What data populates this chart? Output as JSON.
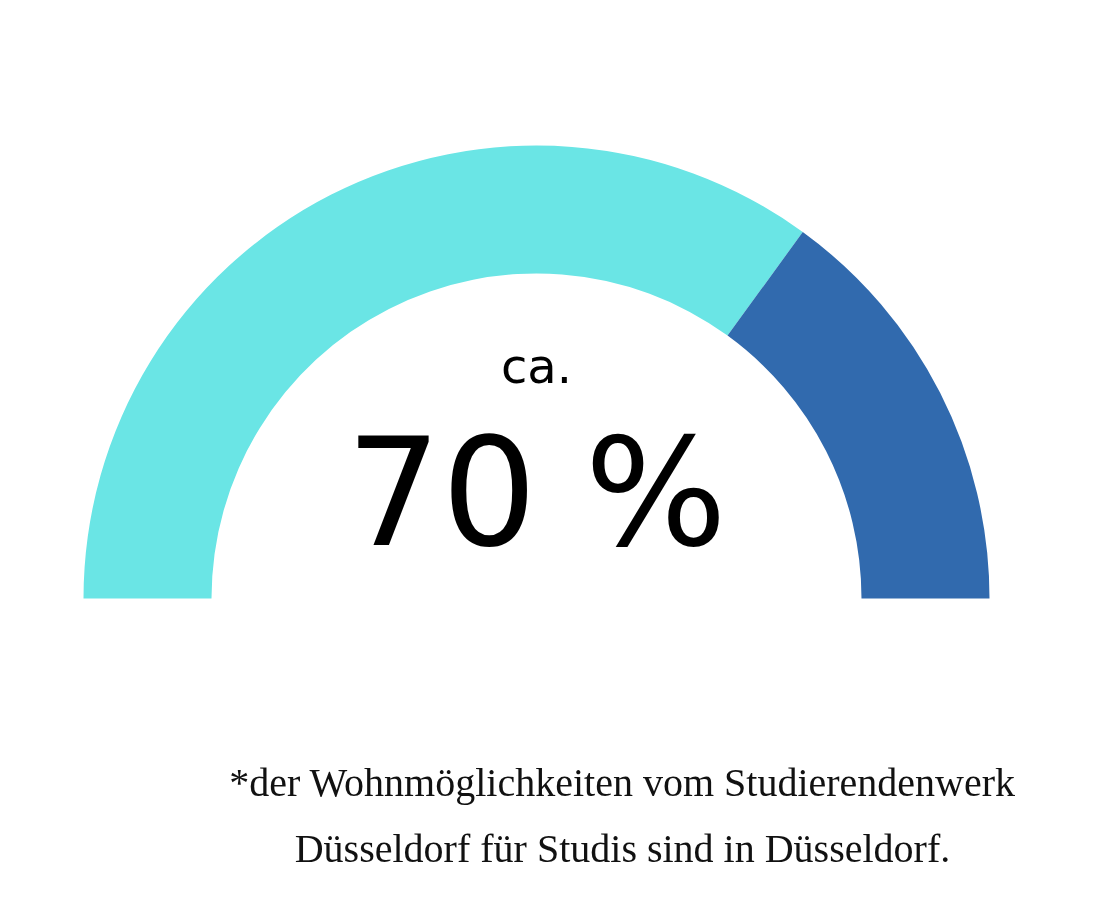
{
  "chart_data": {
    "type": "donut",
    "categories": [
      null,
      null
    ],
    "values": [
      70,
      30
    ],
    "colors": [
      "#6ae5e5",
      "#316aae"
    ],
    "value_labels": [
      "70 %",
      null
    ],
    "annotations": [
      "ca.",
      "*der Wohnmöglichkeiten vom Studierendenwerk\nDüsseldorf für Studis sind in Düsseldorf."
    ]
  }
}
